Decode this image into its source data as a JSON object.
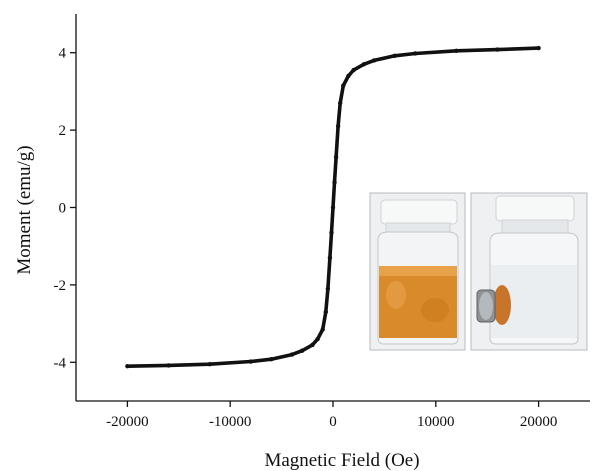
{
  "chart_data": {
    "type": "line",
    "title": "",
    "xlabel": "Magnetic Field (Oe)",
    "ylabel": "Moment (emu/g)",
    "xlim": [
      -25000,
      25000
    ],
    "ylim": [
      -5,
      5
    ],
    "x_ticks": [
      -20000,
      -10000,
      0,
      10000,
      20000
    ],
    "x_tick_labels": [
      "-20000",
      "-10000",
      "0",
      "10000",
      "20000"
    ],
    "y_ticks": [
      -4,
      -2,
      0,
      2,
      4
    ],
    "y_tick_labels": [
      "-4",
      "-2",
      "0",
      "2",
      "4"
    ],
    "grid": false,
    "legend": "none",
    "series": [
      {
        "color": "#111111",
        "x": [
          -20000,
          -16000,
          -12000,
          -8000,
          -6000,
          -4000,
          -3000,
          -2000,
          -1500,
          -1000,
          -700,
          -500,
          -300,
          -150,
          0,
          150,
          300,
          500,
          700,
          1000,
          1500,
          2000,
          3000,
          4000,
          6000,
          8000,
          12000,
          16000,
          20000
        ],
        "y": [
          -4.1,
          -4.08,
          -4.05,
          -3.98,
          -3.92,
          -3.8,
          -3.7,
          -3.55,
          -3.4,
          -3.15,
          -2.7,
          -2.1,
          -1.3,
          -0.65,
          0.0,
          0.65,
          1.3,
          2.1,
          2.7,
          3.15,
          3.4,
          3.55,
          3.7,
          3.8,
          3.92,
          3.98,
          4.05,
          4.08,
          4.12
        ]
      }
    ],
    "inset_images": [
      {
        "description": "vial with orange ferrofluid dispersion"
      },
      {
        "description": "vial with particles collected by external magnet"
      }
    ]
  }
}
